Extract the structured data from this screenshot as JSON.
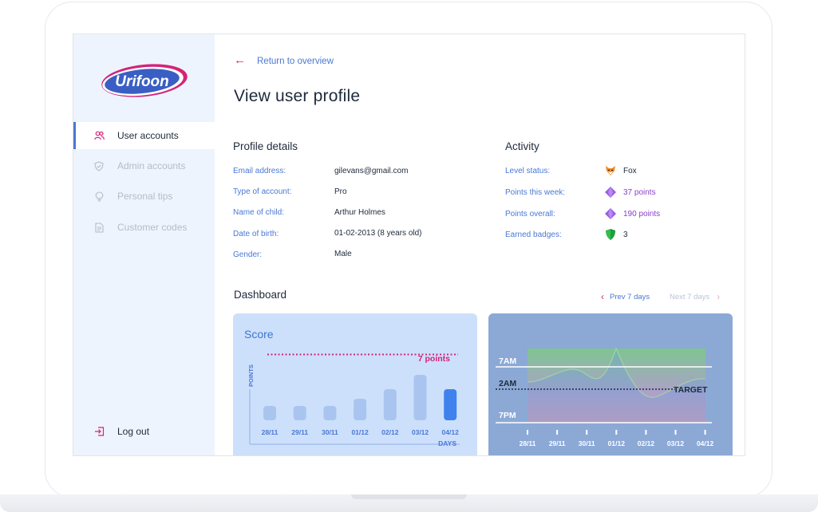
{
  "brand": {
    "logo_text": "Urifoon"
  },
  "sidebar": {
    "items": [
      {
        "label": "User accounts",
        "icon": "users-icon"
      },
      {
        "label": "Admin accounts",
        "icon": "shield-icon"
      },
      {
        "label": "Personal tips",
        "icon": "lightbulb-icon"
      },
      {
        "label": "Customer codes",
        "icon": "document-icon"
      }
    ],
    "logout_label": "Log out"
  },
  "nav": {
    "back_label": "Return to overview"
  },
  "page": {
    "title": "View user profile"
  },
  "profile": {
    "title": "Profile details",
    "rows": [
      {
        "label": "Email address:",
        "value": "gilevans@gmail.com"
      },
      {
        "label": "Type of account:",
        "value": "Pro"
      },
      {
        "label": "Name of child:",
        "value": "Arthur Holmes"
      },
      {
        "label": "Date of birth:",
        "value": "01-02-2013 (8 years old)"
      },
      {
        "label": "Gender:",
        "value": "Male"
      }
    ]
  },
  "activity": {
    "title": "Activity",
    "rows": [
      {
        "label": "Level status:",
        "value": "Fox",
        "icon": "fox-icon"
      },
      {
        "label": "Points this week:",
        "value": "37 points",
        "icon": "gem-icon"
      },
      {
        "label": "Points overall:",
        "value": "190 points",
        "icon": "gem-icon"
      },
      {
        "label": "Earned badges:",
        "value": "3",
        "icon": "shield-badge-icon"
      }
    ]
  },
  "dashboard": {
    "title": "Dashboard",
    "prev_label": "Prev 7 days",
    "next_label": "Next 7 days"
  },
  "colors": {
    "accent": "#4a78d4",
    "brand_pink": "#d4237a",
    "bar": "#a9c5ef",
    "bar_active": "#3f82ee"
  },
  "chart_data": [
    {
      "type": "bar",
      "title": "Score",
      "ylabel": "POINTS",
      "xlabel": "DAYS",
      "categories": [
        "28/11",
        "29/11",
        "30/11",
        "01/12",
        "02/12",
        "03/12",
        "04/12"
      ],
      "values": [
        1.2,
        1.2,
        1.2,
        1.8,
        2.6,
        3.8,
        2.6
      ],
      "highlight_index": 6,
      "target": {
        "value": 5.5,
        "label": "7 points"
      }
    },
    {
      "type": "area",
      "categories": [
        "28/11",
        "29/11",
        "30/11",
        "01/12",
        "02/12",
        "03/12",
        "04/12"
      ],
      "ylabels": [
        "7AM",
        "2AM",
        "7PM"
      ],
      "target_label": "TARGET"
    }
  ]
}
